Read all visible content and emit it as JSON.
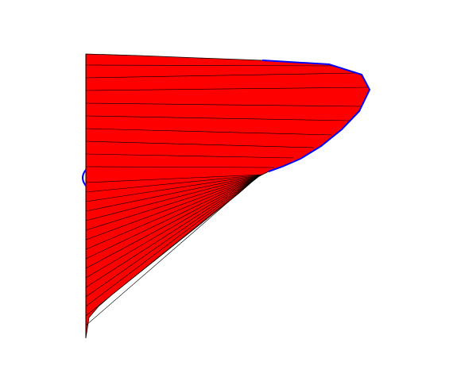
{
  "figure": {
    "background": "#ffffff",
    "fill_color": "#ff0000",
    "edge_color": "#000000",
    "outline_color": "#0000ff"
  }
}
